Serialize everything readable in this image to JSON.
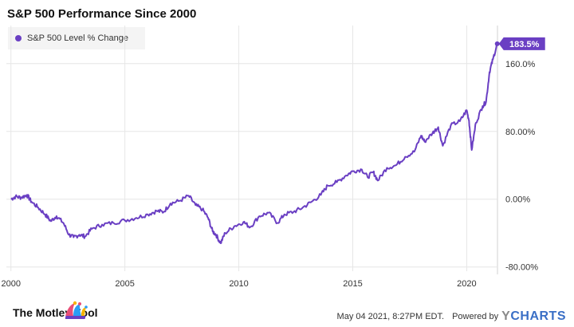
{
  "colors": {
    "series": "#6a3fc3",
    "grid": "#e6e6e6",
    "axis_text": "#333333"
  },
  "chart_data": {
    "type": "line",
    "title": "S&P 500 Performance Since 2000",
    "series": [
      {
        "name": "S&P 500 Level % Change",
        "points": [
          [
            2000.0,
            0
          ],
          [
            2000.2,
            3
          ],
          [
            2000.45,
            2
          ],
          [
            2000.7,
            5
          ],
          [
            2000.9,
            -3
          ],
          [
            2001.2,
            -10
          ],
          [
            2001.5,
            -18
          ],
          [
            2001.75,
            -26
          ],
          [
            2002.0,
            -20
          ],
          [
            2002.3,
            -28
          ],
          [
            2002.55,
            -42
          ],
          [
            2002.75,
            -45
          ],
          [
            2003.0,
            -42
          ],
          [
            2003.25,
            -44
          ],
          [
            2003.55,
            -35
          ],
          [
            2004.0,
            -30
          ],
          [
            2004.5,
            -28
          ],
          [
            2005.0,
            -25
          ],
          [
            2005.5,
            -22
          ],
          [
            2006.0,
            -18
          ],
          [
            2006.4,
            -14
          ],
          [
            2006.7,
            -15
          ],
          [
            2007.0,
            -5
          ],
          [
            2007.4,
            -2
          ],
          [
            2007.8,
            4
          ],
          [
            2008.1,
            -7
          ],
          [
            2008.4,
            -12
          ],
          [
            2008.65,
            -22
          ],
          [
            2008.85,
            -38
          ],
          [
            2009.0,
            -42
          ],
          [
            2009.2,
            -52
          ],
          [
            2009.4,
            -40
          ],
          [
            2009.8,
            -32
          ],
          [
            2010.2,
            -27
          ],
          [
            2010.5,
            -33
          ],
          [
            2010.9,
            -20
          ],
          [
            2011.3,
            -16
          ],
          [
            2011.7,
            -28
          ],
          [
            2012.0,
            -18
          ],
          [
            2012.4,
            -15
          ],
          [
            2012.8,
            -10
          ],
          [
            2013.2,
            -3
          ],
          [
            2013.6,
            5
          ],
          [
            2013.9,
            16
          ],
          [
            2014.3,
            20
          ],
          [
            2014.7,
            28
          ],
          [
            2015.0,
            33
          ],
          [
            2015.4,
            35
          ],
          [
            2015.65,
            26
          ],
          [
            2015.9,
            32
          ],
          [
            2016.1,
            22
          ],
          [
            2016.5,
            37
          ],
          [
            2016.9,
            40
          ],
          [
            2017.3,
            50
          ],
          [
            2017.7,
            56
          ],
          [
            2018.0,
            75
          ],
          [
            2018.15,
            68
          ],
          [
            2018.5,
            78
          ],
          [
            2018.75,
            85
          ],
          [
            2018.95,
            63
          ],
          [
            2019.3,
            87
          ],
          [
            2019.7,
            92
          ],
          [
            2020.0,
            105
          ],
          [
            2020.1,
            93
          ],
          [
            2020.22,
            58
          ],
          [
            2020.4,
            90
          ],
          [
            2020.7,
            110
          ],
          [
            2020.85,
            115
          ],
          [
            2021.0,
            150
          ],
          [
            2021.15,
            165
          ],
          [
            2021.34,
            183.5
          ]
        ]
      }
    ],
    "x_ticks": [
      "2000",
      "2005",
      "2010",
      "2015",
      "2020"
    ],
    "y_ticks": [
      "160.0%",
      "80.00%",
      "0.00%",
      "-80.00%"
    ],
    "xlim": [
      1999.8,
      2021.35
    ],
    "ylim": [
      -85,
      205
    ],
    "end_label": "183.5%",
    "grid": true,
    "legend": "top-left"
  },
  "footer": {
    "logo_text": "The Motley Fool",
    "timestamp": "May 04 2021, 8:27PM EDT.",
    "powered_by": "Powered by",
    "ycharts_y": "Y",
    "ycharts_rest": "CHARTS"
  }
}
